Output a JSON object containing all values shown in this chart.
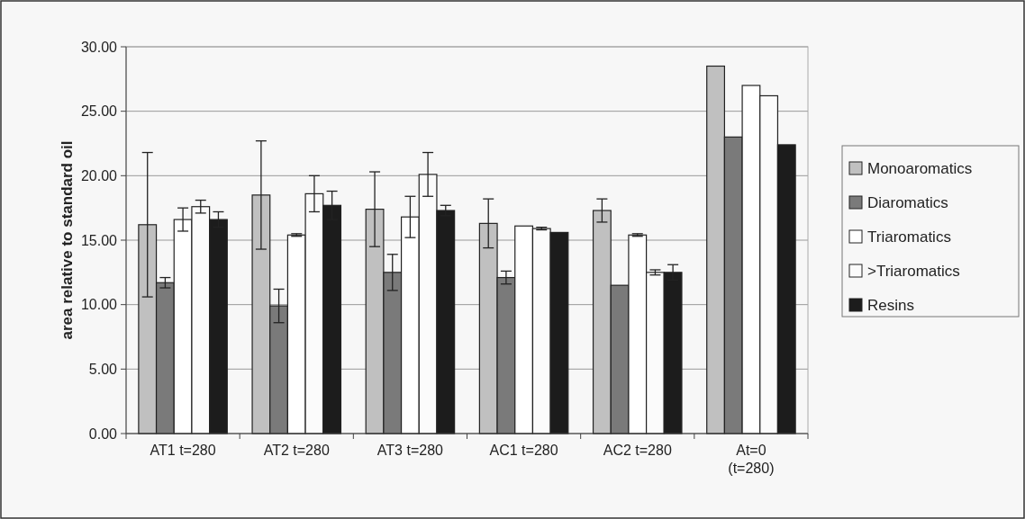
{
  "chart_data": {
    "type": "bar",
    "ylabel": "area relative to standard oil",
    "categories": [
      "AT1 t=280",
      "AT2 t=280",
      "AT3 t=280",
      "AC1 t=280",
      "AC2 t=280",
      "At=0\n(t=280)"
    ],
    "series": [
      {
        "name": "Monoaromatics",
        "color": "#c0c0c0",
        "values": [
          16.2,
          18.5,
          17.4,
          16.3,
          17.3,
          28.5
        ],
        "errors": [
          5.6,
          4.2,
          2.9,
          1.9,
          0.9,
          null
        ]
      },
      {
        "name": "Diaromatics",
        "color": "#7a7a7a",
        "values": [
          11.7,
          9.9,
          12.5,
          12.1,
          11.5,
          23.0
        ],
        "errors": [
          0.4,
          1.3,
          1.4,
          0.5,
          null,
          null
        ]
      },
      {
        "name": "Triaromatics",
        "color": "#ffffff",
        "values": [
          16.6,
          15.4,
          16.8,
          16.1,
          15.4,
          27.0
        ],
        "errors": [
          0.9,
          0.1,
          1.6,
          null,
          0.1,
          null
        ]
      },
      {
        "name": ">Triaromatics",
        "color": "#fbfbfb",
        "values": [
          17.6,
          18.6,
          20.1,
          15.9,
          12.5,
          26.2
        ],
        "errors": [
          0.5,
          1.4,
          1.7,
          0.1,
          0.2,
          null
        ]
      },
      {
        "name": "Resins",
        "color": "#1c1c1c",
        "values": [
          16.6,
          17.7,
          17.3,
          15.6,
          12.5,
          22.4
        ],
        "errors": [
          0.6,
          1.1,
          0.4,
          null,
          0.6,
          null
        ]
      }
    ],
    "ylim": [
      0,
      30
    ],
    "yticks": [
      {
        "value": 0,
        "label": "0.00"
      },
      {
        "value": 5,
        "label": "5.00"
      },
      {
        "value": 10,
        "label": "10.00"
      },
      {
        "value": 15,
        "label": "15.00"
      },
      {
        "value": 20,
        "label": "20.00"
      },
      {
        "value": 25,
        "label": "25.00"
      },
      {
        "value": 30,
        "label": "30.00"
      }
    ],
    "grid": "y",
    "legend": "right"
  }
}
